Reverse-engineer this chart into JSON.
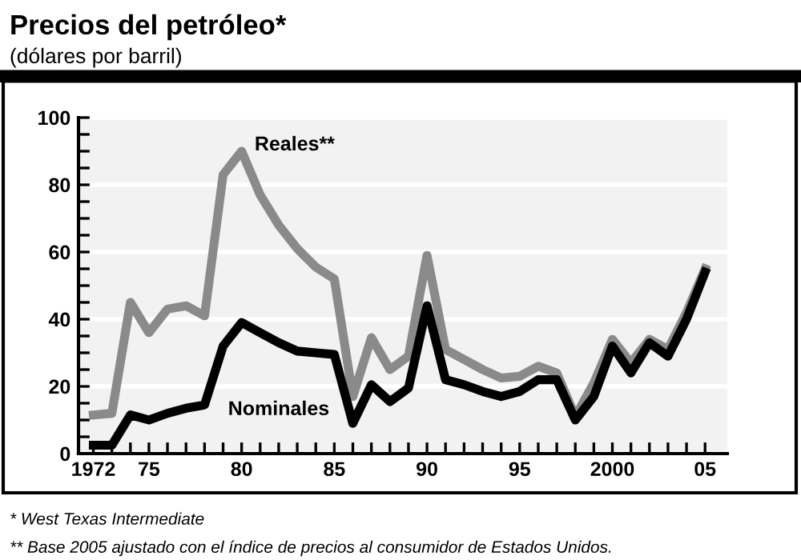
{
  "chart_data": {
    "type": "line",
    "title": "Precios del petróleo*",
    "subtitle": "(dólares por barril)",
    "x": [
      1972,
      1973,
      1974,
      1975,
      1976,
      1977,
      1978,
      1979,
      1980,
      1981,
      1982,
      1983,
      1984,
      1985,
      1986,
      1987,
      1988,
      1989,
      1990,
      1991,
      1992,
      1993,
      1994,
      1995,
      1996,
      1997,
      1998,
      1999,
      2000,
      2001,
      2002,
      2003,
      2004,
      2005
    ],
    "series": [
      {
        "name": "Reales**",
        "color": "#8a8a8a",
        "values": [
          11.5,
          12,
          45,
          36,
          43,
          44,
          41,
          83,
          90,
          77,
          68,
          61,
          55.5,
          52,
          17,
          34.5,
          25,
          29,
          59,
          31,
          28,
          25,
          22.5,
          23,
          26,
          24,
          11,
          21,
          34,
          27,
          34,
          31,
          42,
          55
        ]
      },
      {
        "name": "Nominales",
        "color": "#000000",
        "values": [
          2.5,
          2.5,
          11.5,
          10,
          12,
          13.5,
          14.5,
          32,
          39,
          36,
          33,
          30.5,
          30,
          29.5,
          9,
          20.5,
          15.5,
          19.5,
          44,
          22,
          20.5,
          18.5,
          17,
          18.5,
          22,
          22,
          10,
          17,
          32,
          24,
          33,
          29,
          40,
          54
        ]
      }
    ],
    "xlim": [
      1971.2,
      2006.2
    ],
    "ylim": [
      0,
      100
    ],
    "xticks": [
      1972,
      {
        "value": 1973,
        "label": null
      },
      {
        "value": 1974,
        "label": null
      },
      {
        "value": 1975,
        "label": "75"
      },
      {
        "value": 1976,
        "label": null
      },
      {
        "value": 1977,
        "label": null
      },
      {
        "value": 1978,
        "label": null
      },
      {
        "value": 1979,
        "label": null
      },
      {
        "value": 1980,
        "label": "80"
      },
      {
        "value": 1981,
        "label": null
      },
      {
        "value": 1982,
        "label": null
      },
      {
        "value": 1983,
        "label": null
      },
      {
        "value": 1984,
        "label": null
      },
      {
        "value": 1985,
        "label": "85"
      },
      {
        "value": 1986,
        "label": null
      },
      {
        "value": 1987,
        "label": null
      },
      {
        "value": 1988,
        "label": null
      },
      {
        "value": 1989,
        "label": null
      },
      {
        "value": 1990,
        "label": "90"
      },
      {
        "value": 1991,
        "label": null
      },
      {
        "value": 1992,
        "label": null
      },
      {
        "value": 1993,
        "label": null
      },
      {
        "value": 1994,
        "label": null
      },
      {
        "value": 1995,
        "label": "95"
      },
      {
        "value": 1996,
        "label": null
      },
      {
        "value": 1997,
        "label": null
      },
      {
        "value": 1998,
        "label": null
      },
      {
        "value": 1999,
        "label": null
      },
      2000,
      {
        "value": 2001,
        "label": null
      },
      {
        "value": 2002,
        "label": null
      },
      {
        "value": 2003,
        "label": null
      },
      {
        "value": 2004,
        "label": null
      },
      {
        "value": 2005,
        "label": "05"
      }
    ],
    "yticks": [
      0,
      {
        "value": 5,
        "label": null
      },
      {
        "value": 10,
        "label": null
      },
      {
        "value": 15,
        "label": null
      },
      20,
      {
        "value": 25,
        "label": null
      },
      {
        "value": 30,
        "label": null
      },
      {
        "value": 35,
        "label": null
      },
      40,
      {
        "value": 45,
        "label": null
      },
      {
        "value": 50,
        "label": null
      },
      {
        "value": 55,
        "label": null
      },
      60,
      {
        "value": 65,
        "label": null
      },
      {
        "value": 70,
        "label": null
      },
      {
        "value": 75,
        "label": null
      },
      80,
      {
        "value": 85,
        "label": null
      },
      {
        "value": 90,
        "label": null
      },
      {
        "value": 95,
        "label": null
      },
      100
    ],
    "grid": "y",
    "line_style": "solid",
    "marker": "none",
    "annotations": [
      "* West Texas Intermediate",
      "** Base 2005 ajustado con el índice de precios al consumidor de Estados Unidos."
    ]
  }
}
